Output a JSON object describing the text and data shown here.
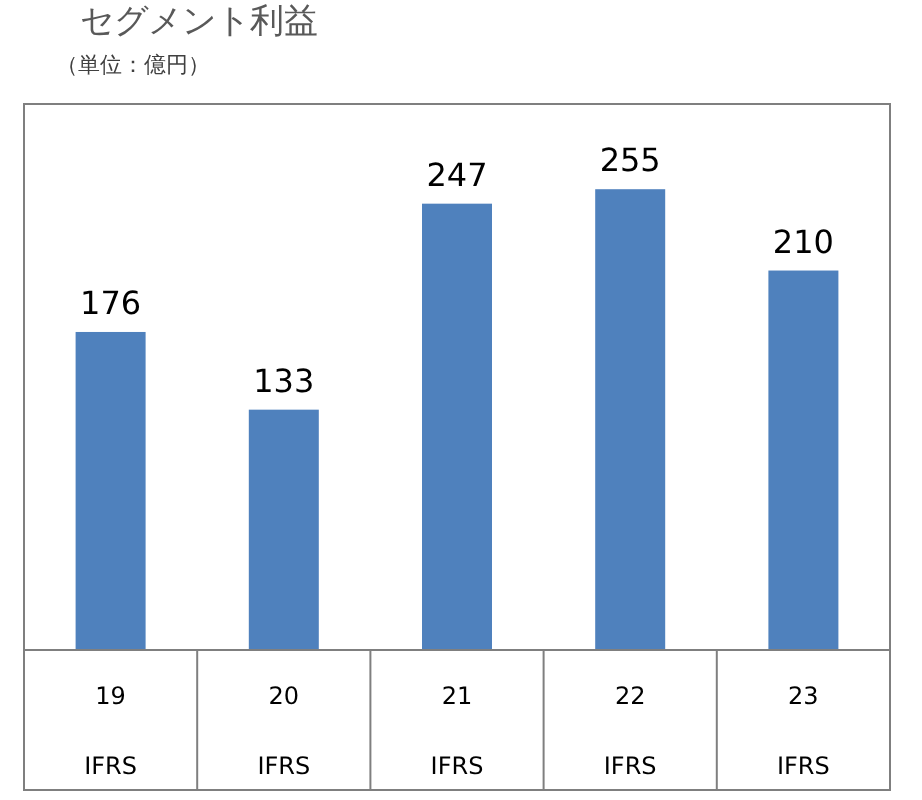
{
  "chart_data": {
    "type": "bar",
    "title": "セグメント利益",
    "subtitle": "（単位：億円）",
    "categories": [
      "19\nIFRS",
      "20\nIFRS",
      "21\nIFRS",
      "22\nIFRS",
      "23\nIFRS"
    ],
    "values": [
      176,
      133,
      247,
      255,
      210
    ],
    "color": "#4f81bd",
    "data_labels": true
  }
}
